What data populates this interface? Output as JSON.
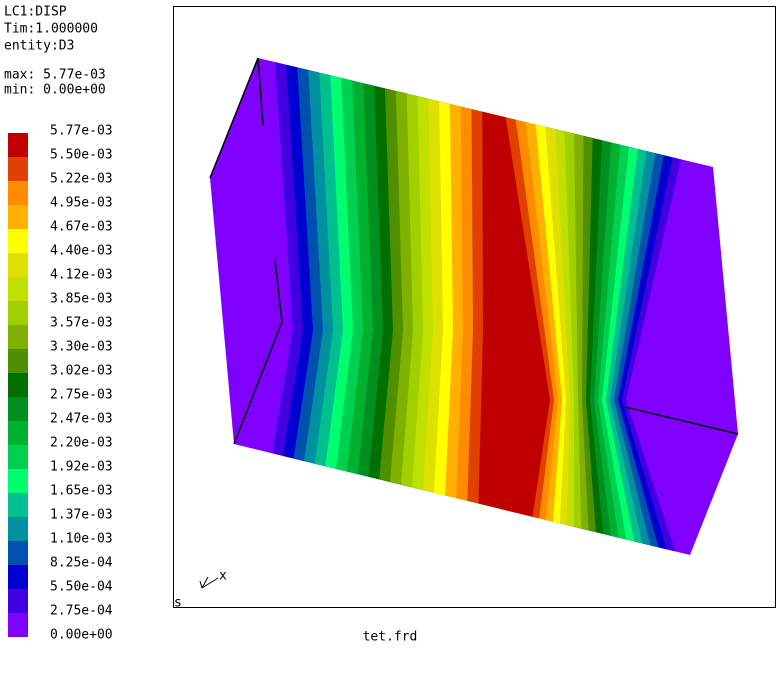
{
  "header": {
    "lines": [
      "LC1:DISP",
      "Tim:1.000000",
      "entity:D3"
    ],
    "max": "max: 5.77e-03",
    "min": "min: 0.00e+00"
  },
  "legend": {
    "labels": [
      "5.77e-03",
      "5.50e-03",
      "5.22e-03",
      "4.95e-03",
      "4.67e-03",
      "4.40e-03",
      "4.12e-03",
      "3.85e-03",
      "3.57e-03",
      "3.30e-03",
      "3.02e-03",
      "2.75e-03",
      "2.47e-03",
      "2.20e-03",
      "1.92e-03",
      "1.65e-03",
      "1.37e-03",
      "1.10e-03",
      "8.25e-04",
      "5.50e-04",
      "2.75e-04",
      "0.00e+00"
    ],
    "colors": [
      "#c00000",
      "#e04000",
      "#ff8c00",
      "#ffb000",
      "#ffff00",
      "#e0e000",
      "#c0e000",
      "#a0d000",
      "#80b000",
      "#509000",
      "#007000",
      "#009020",
      "#00b030",
      "#00d050",
      "#00ff70",
      "#00c090",
      "#0090a0",
      "#0050b0",
      "#0000d0",
      "#4000e0",
      "#8000ff"
    ]
  },
  "triad": {
    "axis_label": "x",
    "corner_label": "s"
  },
  "footer": "tet.frd"
}
